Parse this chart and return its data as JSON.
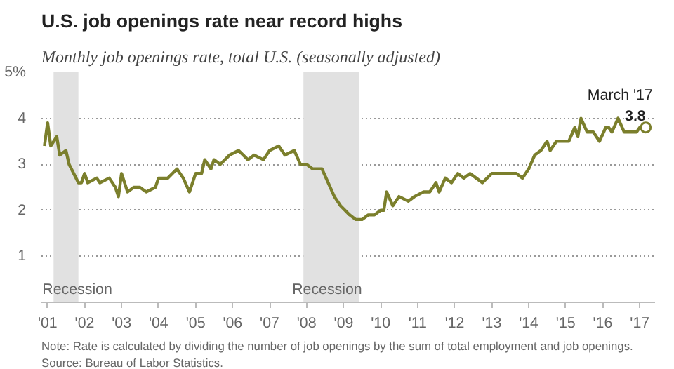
{
  "chart_data": {
    "type": "line",
    "title": "U.S. job openings rate near record highs",
    "subtitle": "Monthly job openings rate, total U.S. (seasonally adjusted)",
    "x": [
      "2000-12",
      "2001-01",
      "2001-02",
      "2001-04",
      "2001-05",
      "2001-07",
      "2001-08",
      "2001-11",
      "2001-12",
      "2002-01",
      "2002-02",
      "2002-05",
      "2002-06",
      "2002-09",
      "2002-11",
      "2002-12",
      "2003-01",
      "2003-03",
      "2003-05",
      "2003-07",
      "2003-09",
      "2003-12",
      "2004-01",
      "2004-04",
      "2004-07",
      "2004-09",
      "2004-11",
      "2005-01",
      "2005-03",
      "2005-04",
      "2005-06",
      "2005-07",
      "2005-09",
      "2005-12",
      "2006-03",
      "2006-06",
      "2006-08",
      "2006-11",
      "2007-01",
      "2007-04",
      "2007-06",
      "2007-09",
      "2007-11",
      "2008-01",
      "2008-03",
      "2008-06",
      "2008-08",
      "2008-10",
      "2008-12",
      "2009-03",
      "2009-05",
      "2009-07",
      "2009-09",
      "2009-11",
      "2010-01",
      "2010-02",
      "2010-03",
      "2010-05",
      "2010-07",
      "2010-10",
      "2010-12",
      "2011-03",
      "2011-05",
      "2011-07",
      "2011-08",
      "2011-10",
      "2011-12",
      "2012-02",
      "2012-04",
      "2012-06",
      "2012-08",
      "2012-10",
      "2013-01",
      "2013-07",
      "2013-09",
      "2013-11",
      "2014-01",
      "2014-03",
      "2014-05",
      "2014-07",
      "2014-08",
      "2014-10",
      "2014-12",
      "2015-02",
      "2015-04",
      "2015-05",
      "2015-06",
      "2015-08",
      "2015-10",
      "2015-12",
      "2016-02",
      "2016-03",
      "2016-04",
      "2016-06",
      "2016-08",
      "2016-10",
      "2016-12",
      "2017-01",
      "2017-03"
    ],
    "series": [
      {
        "color": "#7b7f2c",
        "values": [
          3.4,
          3.9,
          3.4,
          3.6,
          3.2,
          3.3,
          3.0,
          2.6,
          2.6,
          2.8,
          2.6,
          2.7,
          2.6,
          2.7,
          2.5,
          2.3,
          2.8,
          2.4,
          2.5,
          2.5,
          2.4,
          2.5,
          2.7,
          2.7,
          2.9,
          2.7,
          2.4,
          2.8,
          2.8,
          3.1,
          2.9,
          3.1,
          3.0,
          3.2,
          3.3,
          3.1,
          3.2,
          3.1,
          3.3,
          3.4,
          3.2,
          3.3,
          3.0,
          3.0,
          2.9,
          2.9,
          2.6,
          2.3,
          2.1,
          1.9,
          1.8,
          1.8,
          1.9,
          1.9,
          2.0,
          2.0,
          2.4,
          2.1,
          2.3,
          2.2,
          2.3,
          2.4,
          2.4,
          2.6,
          2.4,
          2.7,
          2.6,
          2.8,
          2.7,
          2.8,
          2.7,
          2.6,
          2.8,
          2.8,
          2.8,
          2.7,
          2.9,
          3.2,
          3.3,
          3.5,
          3.3,
          3.5,
          3.5,
          3.5,
          3.8,
          3.6,
          4.0,
          3.7,
          3.7,
          3.5,
          3.8,
          3.8,
          3.7,
          4.0,
          3.7,
          3.7,
          3.7,
          3.8,
          3.8
        ],
        "value_labels": [
          null,
          null,
          null,
          null,
          null,
          null,
          null,
          null,
          null,
          null,
          null,
          null,
          null,
          null,
          null,
          null,
          null,
          null,
          null,
          null,
          null,
          null,
          null,
          null,
          null,
          null,
          null,
          null,
          null,
          null,
          null,
          null,
          null,
          null,
          null,
          null,
          null,
          null,
          null,
          null,
          null,
          null,
          null,
          null,
          null,
          null,
          null,
          null,
          null,
          null,
          null,
          null,
          null,
          null,
          null,
          null,
          null,
          null,
          null,
          null,
          null,
          null,
          null,
          null,
          null,
          null,
          null,
          null,
          null,
          null,
          null,
          null,
          null,
          null,
          null,
          null,
          null,
          null,
          null,
          null,
          null,
          null,
          null,
          null,
          null,
          null,
          null,
          null,
          null,
          null,
          null,
          null,
          null,
          null,
          null,
          null,
          null,
          null,
          "3.8"
        ]
      }
    ],
    "xlim": [
      "2000-11",
      "2017-06"
    ],
    "xticks": [
      {
        "value": "2001",
        "label": "'01"
      },
      {
        "value": "2002",
        "label": "'02"
      },
      {
        "value": "2003",
        "label": "'03"
      },
      {
        "value": "2004",
        "label": "'04"
      },
      {
        "value": "2005",
        "label": "'05"
      },
      {
        "value": "2006",
        "label": "'06"
      },
      {
        "value": "2007",
        "label": "'07"
      },
      {
        "value": "2008",
        "label": "'08"
      },
      {
        "value": "2009",
        "label": "'09"
      },
      {
        "value": "2010",
        "label": "'10"
      },
      {
        "value": "2011",
        "label": "'11"
      },
      {
        "value": "2012",
        "label": "'12"
      },
      {
        "value": "2013",
        "label": "'13"
      },
      {
        "value": "2014",
        "label": "'14"
      },
      {
        "value": "2015",
        "label": "'15"
      },
      {
        "value": "2016",
        "label": "'16"
      },
      {
        "value": "2017",
        "label": "'17"
      }
    ],
    "ylim": [
      0,
      5
    ],
    "yticks": [
      1,
      2,
      3,
      4,
      {
        "value": 5,
        "label": "5%"
      }
    ],
    "grid": "y",
    "line_style": "solid",
    "marker": "none",
    "bands": [
      {
        "axis": "x",
        "from": "2001-03",
        "to": "2001-11",
        "label": "Recession",
        "color": "#e1e1e1"
      },
      {
        "axis": "x",
        "from": "2007-12",
        "to": "2009-06",
        "label": "Recession",
        "color": "#e1e1e1"
      }
    ],
    "annotations": [
      {
        "text": "March '17",
        "x": "2017-03",
        "y": 3.8
      },
      "Note: Rate is calculated by dividing the number of job openings by the sum of total employment and job openings.",
      "Source: Bureau of Labor Statistics."
    ]
  }
}
